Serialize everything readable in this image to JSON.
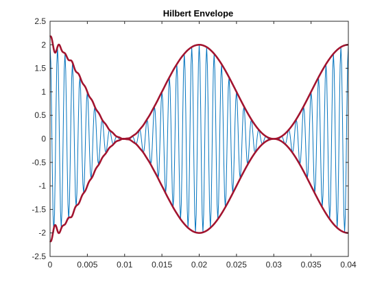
{
  "chart_data": {
    "type": "line",
    "title": "Hilbert Envelope",
    "xlabel": "",
    "ylabel": "",
    "xlim": [
      0,
      0.04
    ],
    "ylim": [
      -2.5,
      2.5
    ],
    "x_ticks": [
      "0",
      "0.005",
      "0.01",
      "0.015",
      "0.02",
      "0.025",
      "0.03",
      "0.035",
      "0.04"
    ],
    "y_ticks": [
      "2.5",
      "2",
      "1.5",
      "1",
      "0.5",
      "0",
      "-0.5",
      "-1",
      "-1.5",
      "-2",
      "-2.5"
    ],
    "grid": false,
    "legend": "none",
    "signal": {
      "description": "amplitude-modulated sinusoid x(t) = (1 + cos(2*pi*50*t)) * cos(2*pi*1000*t)",
      "modulation_frequency_hz": 50,
      "carrier_frequency_hz": 1000,
      "modulation_offset": 1,
      "sample_rate_hz": 10000,
      "color": "#0072BD"
    },
    "envelope": {
      "description": "upper and lower Hilbert envelope (±|analytic signal|)",
      "color": "#A2142F",
      "edge_ringing_peak": 2.17
    }
  }
}
